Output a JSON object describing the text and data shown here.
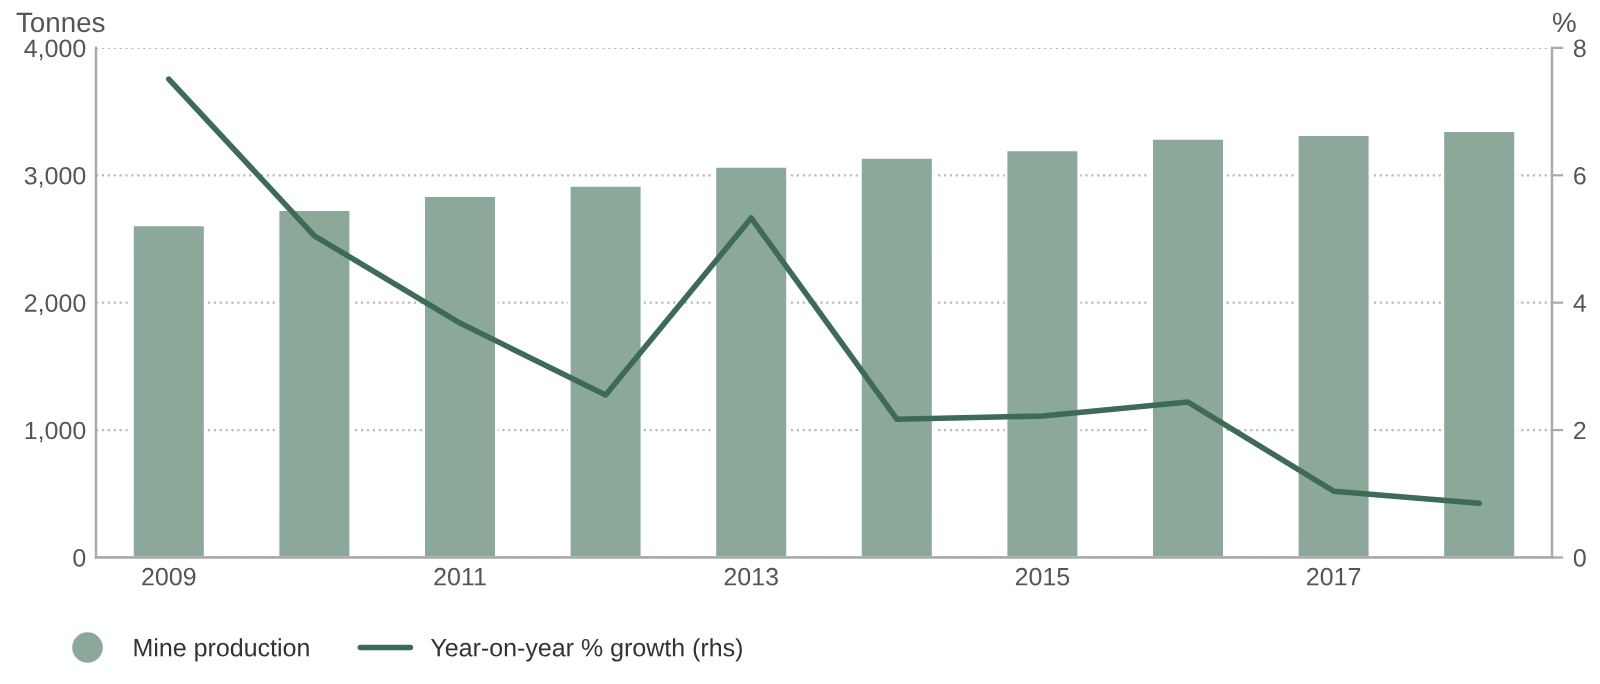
{
  "chart_data": {
    "type": "bar",
    "ylabel": "Tonnes",
    "y2label": "%",
    "categories": [
      "2009",
      null,
      "2011",
      null,
      "2013",
      null,
      "2015",
      null,
      "2017",
      null
    ],
    "series": [
      {
        "name": "Mine production",
        "color": "#8ca89b",
        "values": [
          2610,
          2730,
          2840,
          2920,
          3070,
          3140,
          3200,
          3290,
          3320,
          3350
        ]
      },
      {
        "name": "Year-on-year % growth (rhs)",
        "type": "line",
        "axis": "y2",
        "color": "#3d6b57",
        "values": [
          7.51,
          5.05,
          3.68,
          2.55,
          5.33,
          2.17,
          2.22,
          2.44,
          1.04,
          0.85
        ]
      }
    ],
    "ylim": [
      0,
      4000
    ],
    "yticks": [
      0,
      {
        "value": 1000,
        "label": "1,000"
      },
      {
        "value": 2000,
        "label": "2,000"
      },
      {
        "value": 3000,
        "label": "3,000"
      },
      {
        "value": 4000,
        "label": "4,000"
      }
    ],
    "y2lim": [
      0,
      8
    ],
    "y2ticks": [
      0,
      2,
      4,
      6,
      8
    ],
    "grid": "y",
    "legend": "bottom left",
    "marker": "none",
    "line_style": "solid"
  }
}
